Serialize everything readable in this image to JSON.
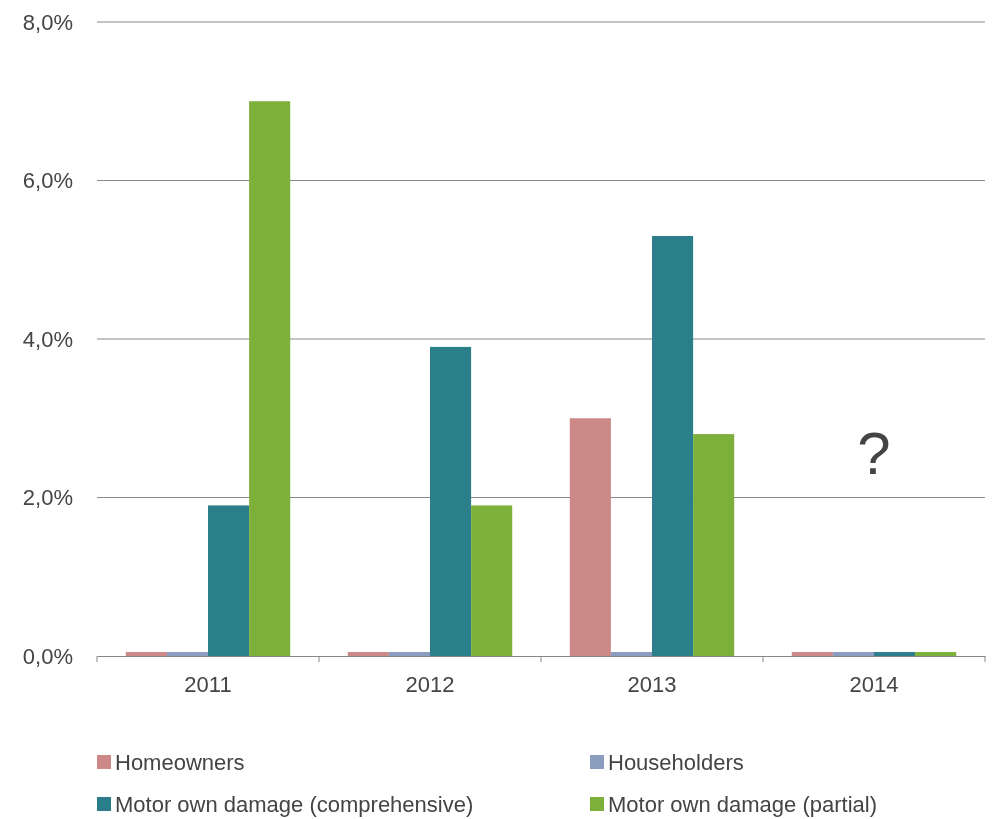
{
  "chart_data": {
    "type": "bar",
    "categories": [
      "2011",
      "2012",
      "2013",
      "2014"
    ],
    "series": [
      {
        "name": "Homeowners",
        "color": "#cd8888",
        "values": [
          0.05,
          0.05,
          3.0,
          0.05
        ]
      },
      {
        "name": "Householders",
        "color": "#8a9dbf",
        "values": [
          0.05,
          0.05,
          0.05,
          0.05
        ]
      },
      {
        "name": "Motor own damage (comprehensive)",
        "color": "#2b7f8a",
        "values": [
          1.9,
          3.9,
          5.3,
          0.05
        ]
      },
      {
        "name": "Motor own damage (partial)",
        "color": "#7db03a",
        "values": [
          7.0,
          1.9,
          2.8,
          0.05
        ]
      }
    ],
    "ylim": [
      0,
      8
    ],
    "yticks": [
      {
        "value": 0,
        "label": "0,0%"
      },
      {
        "value": 2,
        "label": "2,0%"
      },
      {
        "value": 4,
        "label": "4,0%"
      },
      {
        "value": 6,
        "label": "6,0%"
      },
      {
        "value": 8,
        "label": "8,0%"
      }
    ],
    "grid": "y",
    "legend": "bottom",
    "annotations": [
      "?"
    ]
  }
}
